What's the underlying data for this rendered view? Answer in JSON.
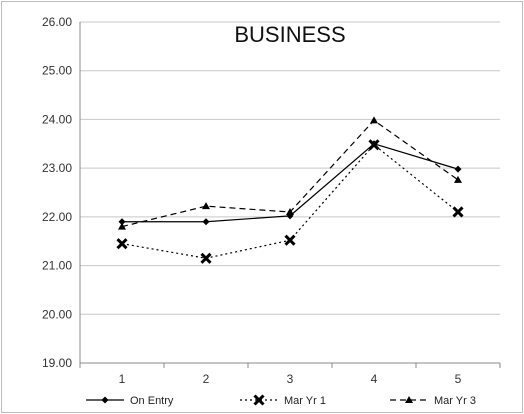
{
  "chart_data": {
    "type": "line",
    "title": "BUSINESS",
    "xlabel": "",
    "ylabel": "",
    "categories": [
      "1",
      "2",
      "3",
      "4",
      "5"
    ],
    "ylim": [
      19.0,
      26.0
    ],
    "yticks": [
      "19.00",
      "20.00",
      "21.00",
      "22.00",
      "23.00",
      "24.00",
      "25.00",
      "26.00"
    ],
    "grid": "horizontal",
    "legend_position": "bottom",
    "series": [
      {
        "name": "On Entry",
        "values": [
          21.9,
          21.9,
          22.02,
          23.5,
          22.98
        ],
        "line": "solid",
        "marker": "diamond",
        "color": "#000000"
      },
      {
        "name": "Mar Yr 1",
        "values": [
          21.45,
          21.15,
          21.52,
          23.48,
          22.1
        ],
        "line": "dotted",
        "marker": "x",
        "color": "#000000"
      },
      {
        "name": "Mar Yr 3",
        "values": [
          21.8,
          22.22,
          22.1,
          23.98,
          22.76
        ],
        "line": "dashed",
        "marker": "triangle",
        "color": "#000000"
      }
    ]
  }
}
